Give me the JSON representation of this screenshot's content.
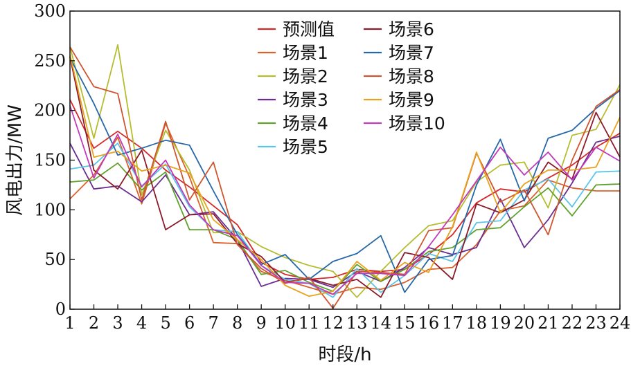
{
  "chart_data": {
    "type": "line",
    "title": "",
    "xlabel": "时段/h",
    "ylabel": "风电出力/MW",
    "xlim": [
      1,
      24
    ],
    "ylim": [
      0,
      300
    ],
    "x_ticks": [
      1,
      2,
      3,
      4,
      5,
      6,
      7,
      8,
      9,
      10,
      11,
      12,
      13,
      14,
      15,
      16,
      17,
      18,
      19,
      20,
      21,
      22,
      23,
      24
    ],
    "y_ticks": [
      0,
      50,
      100,
      150,
      200,
      250,
      300
    ],
    "grid": false,
    "legend_position": "top-center",
    "x": [
      1,
      2,
      3,
      4,
      5,
      6,
      7,
      8,
      9,
      10,
      11,
      12,
      13,
      14,
      15,
      16,
      17,
      18,
      19,
      20,
      21,
      22,
      23,
      24
    ],
    "series": [
      {
        "name": "预测值",
        "color": "#d62728",
        "values": [
          211,
          162,
          179,
          162,
          140,
          123,
          104,
          85,
          47,
          35,
          30,
          32,
          40,
          38,
          40,
          55,
          75,
          107,
          121,
          118,
          132,
          145,
          163,
          177
        ]
      },
      {
        "name": "场景1",
        "color": "#d9622b",
        "values": [
          111,
          135,
          173,
          106,
          187,
          133,
          67,
          66,
          38,
          29,
          22,
          15,
          22,
          20,
          27,
          40,
          42,
          65,
          99,
          104,
          130,
          122,
          119,
          119
        ]
      },
      {
        "name": "场景2",
        "color": "#b5bd2e",
        "values": [
          264,
          172,
          266,
          115,
          180,
          140,
          77,
          78,
          63,
          52,
          44,
          38,
          12,
          38,
          62,
          84,
          89,
          128,
          145,
          148,
          102,
          175,
          181,
          226
        ]
      },
      {
        "name": "场景3",
        "color": "#6a2c91",
        "values": [
          167,
          121,
          124,
          108,
          135,
          95,
          98,
          70,
          23,
          31,
          30,
          22,
          38,
          28,
          42,
          62,
          55,
          62,
          111,
          62,
          90,
          127,
          168,
          174
        ]
      },
      {
        "name": "场景4",
        "color": "#5fa12c",
        "values": [
          128,
          130,
          147,
          120,
          138,
          80,
          80,
          70,
          35,
          39,
          27,
          18,
          45,
          28,
          40,
          58,
          62,
          80,
          82,
          103,
          122,
          94,
          125,
          126
        ]
      },
      {
        "name": "场景5",
        "color": "#5bc5e8",
        "values": [
          141,
          145,
          167,
          124,
          146,
          103,
          80,
          78,
          44,
          30,
          26,
          12,
          41,
          17,
          34,
          56,
          48,
          87,
          89,
          120,
          131,
          103,
          138,
          139
        ]
      },
      {
        "name": "场景6",
        "color": "#8b1a2a",
        "values": [
          254,
          140,
          121,
          160,
          80,
          95,
          96,
          66,
          53,
          27,
          31,
          24,
          30,
          12,
          57,
          52,
          30,
          106,
          97,
          110,
          148,
          131,
          198,
          153
        ]
      },
      {
        "name": "场景7",
        "color": "#2567a8",
        "values": [
          253,
          207,
          155,
          162,
          170,
          165,
          119,
          75,
          45,
          55,
          30,
          48,
          56,
          74,
          17,
          50,
          54,
          125,
          171,
          109,
          172,
          180,
          202,
          220
        ]
      },
      {
        "name": "场景8",
        "color": "#cf5530",
        "values": [
          264,
          224,
          217,
          110,
          189,
          110,
          148,
          65,
          41,
          26,
          32,
          1,
          38,
          37,
          35,
          79,
          82,
          157,
          108,
          120,
          75,
          150,
          204,
          221
        ]
      },
      {
        "name": "场景9",
        "color": "#e8a21c",
        "values": [
          256,
          153,
          159,
          139,
          145,
          137,
          90,
          70,
          50,
          24,
          13,
          18,
          48,
          29,
          47,
          37,
          83,
          158,
          97,
          126,
          140,
          140,
          143,
          193
        ]
      },
      {
        "name": "场景10",
        "color": "#c03aba",
        "values": [
          205,
          132,
          176,
          123,
          150,
          105,
          80,
          74,
          44,
          27,
          26,
          15,
          36,
          36,
          34,
          63,
          95,
          129,
          163,
          135,
          158,
          130,
          163,
          149
        ]
      }
    ]
  }
}
